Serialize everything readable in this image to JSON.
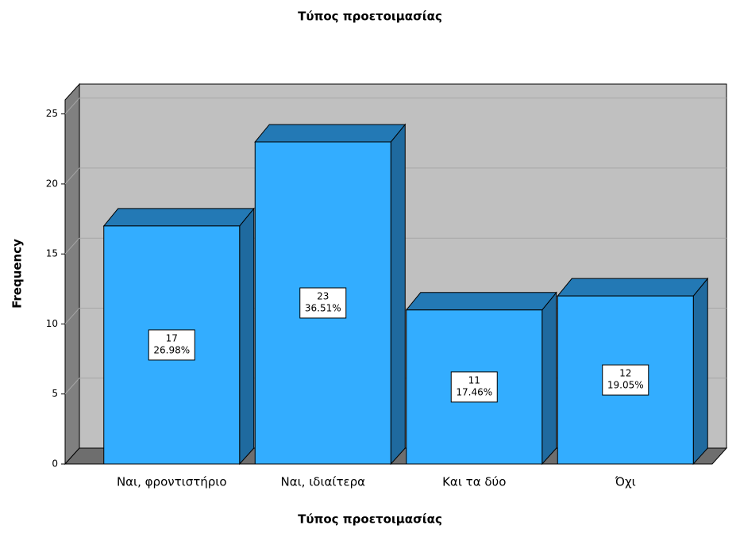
{
  "chart_data": {
    "type": "bar3d",
    "title": "Τύπος προετοιμασίας",
    "x_label": "Τύπος προετοιμασίας",
    "y_label": "Frequency",
    "categories": [
      "Ναι, φροντιστήριο",
      "Ναι, ιδιαίτερα",
      "Και τα δύο",
      "Όχι"
    ],
    "values": [
      17,
      23,
      11,
      12
    ],
    "percentages": [
      26.98,
      36.51,
      17.46,
      19.05
    ],
    "percentage_labels": [
      "26.98%",
      "36.51%",
      "17.46%",
      "19.05%"
    ],
    "color": "#33adff",
    "ylim": [
      0,
      26
    ],
    "yticks": [
      0,
      5,
      10,
      15,
      20,
      25
    ],
    "grid": true
  }
}
